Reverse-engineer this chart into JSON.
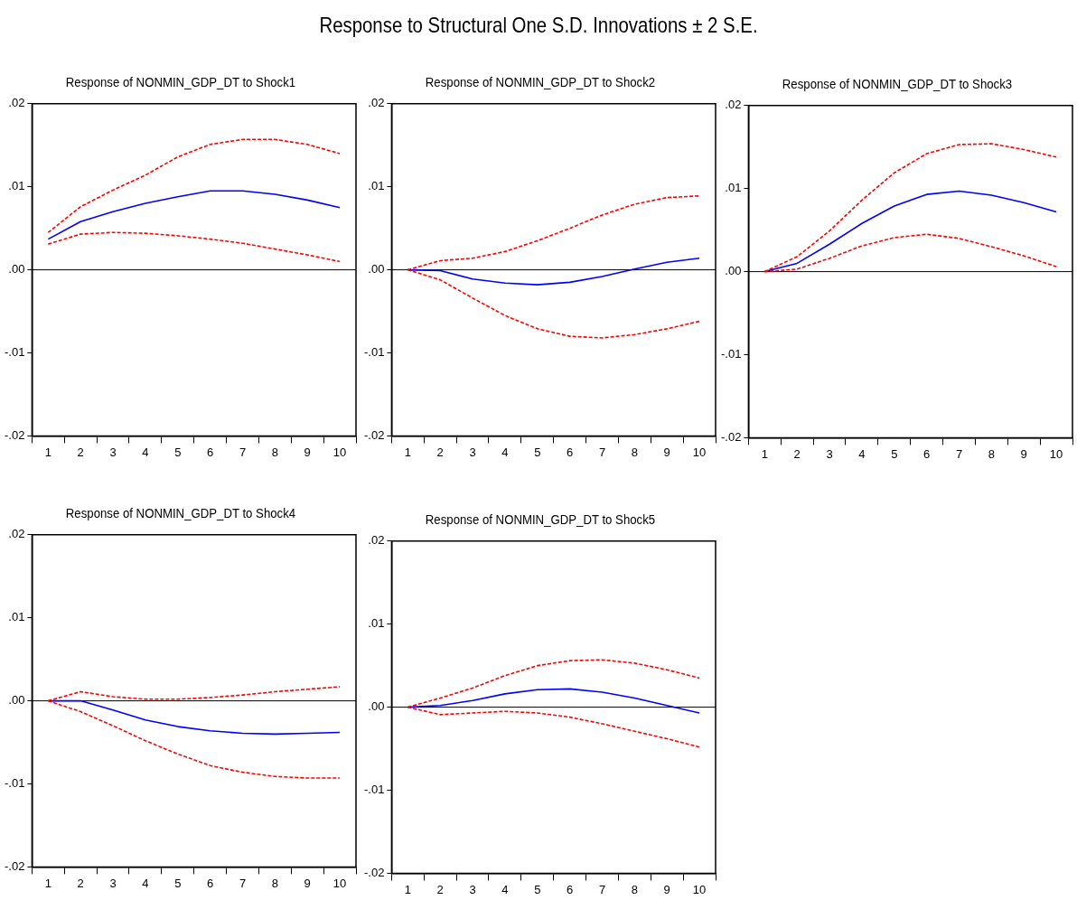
{
  "chart_data": [
    {
      "type": "line",
      "title": "Response of NONMIN_GDP_DT to Shock1",
      "annotations": [
        "Response to Structural One S.D. Innovations ± 2 S.E."
      ],
      "categories": [
        "1",
        "2",
        "3",
        "4",
        "5",
        "6",
        "7",
        "8",
        "9",
        "10"
      ],
      "ylim": [
        -0.02,
        0.02
      ],
      "yticks": [
        {
          "value": -0.02,
          "label": "-.02"
        },
        {
          "value": -0.01,
          "label": "-.01"
        },
        {
          "value": 0,
          "label": ".00"
        },
        {
          "value": 0.01,
          "label": ".01"
        },
        {
          "value": 0.02,
          "label": ".02"
        }
      ],
      "grid": false,
      "legend": false,
      "marker": "none",
      "ref_lines": [
        {
          "axis": "y",
          "value": 0,
          "color": "#000000"
        }
      ],
      "series": [
        {
          "color": "#0000ff",
          "line_style": "solid",
          "values": [
            0.0037,
            0.0058,
            0.007,
            0.008,
            0.0088,
            0.0095,
            0.0095,
            0.0091,
            0.0084,
            0.0075
          ]
        },
        {
          "color": "#ff0000",
          "line_style": "dashed",
          "values": [
            0.0045,
            0.0076,
            0.0096,
            0.0114,
            0.0136,
            0.0151,
            0.0157,
            0.0157,
            0.0151,
            0.014
          ]
        },
        {
          "color": "#ff0000",
          "line_style": "dashed",
          "values": [
            0.0031,
            0.0043,
            0.0045,
            0.0044,
            0.0041,
            0.0037,
            0.0032,
            0.0025,
            0.0018,
            0.001
          ]
        }
      ]
    },
    {
      "type": "line",
      "title": "Response of NONMIN_GDP_DT to Shock2",
      "categories": [
        "1",
        "2",
        "3",
        "4",
        "5",
        "6",
        "7",
        "8",
        "9",
        "10"
      ],
      "ylim": [
        -0.02,
        0.02
      ],
      "yticks": [
        {
          "value": -0.02,
          "label": "-.02"
        },
        {
          "value": -0.01,
          "label": "-.01"
        },
        {
          "value": 0,
          "label": ".00"
        },
        {
          "value": 0.01,
          "label": ".01"
        },
        {
          "value": 0.02,
          "label": ".02"
        }
      ],
      "grid": false,
      "legend": false,
      "marker": "none",
      "ref_lines": [
        {
          "axis": "y",
          "value": 0,
          "color": "#000000"
        }
      ],
      "series": [
        {
          "color": "#0000ff",
          "line_style": "solid",
          "values": [
            0,
            -0.0001,
            -0.0011,
            -0.0016,
            -0.0018,
            -0.0015,
            -0.0008,
            0.0001,
            0.0009,
            0.0014
          ]
        },
        {
          "color": "#ff0000",
          "line_style": "dashed",
          "values": [
            0,
            0.0011,
            0.0014,
            0.0022,
            0.0035,
            0.005,
            0.0066,
            0.0079,
            0.0087,
            0.0089
          ]
        },
        {
          "color": "#ff0000",
          "line_style": "dashed",
          "values": [
            0,
            -0.0012,
            -0.0034,
            -0.0055,
            -0.0071,
            -0.008,
            -0.0082,
            -0.0078,
            -0.0071,
            -0.0062
          ]
        }
      ]
    },
    {
      "type": "line",
      "title": "Response of NONMIN_GDP_DT to Shock3",
      "categories": [
        "1",
        "2",
        "3",
        "4",
        "5",
        "6",
        "7",
        "8",
        "9",
        "10"
      ],
      "ylim": [
        -0.02,
        0.02
      ],
      "yticks": [
        {
          "value": -0.02,
          "label": "-.02"
        },
        {
          "value": -0.01,
          "label": "-.01"
        },
        {
          "value": 0,
          "label": ".00"
        },
        {
          "value": 0.01,
          "label": ".01"
        },
        {
          "value": 0.02,
          "label": ".02"
        }
      ],
      "grid": false,
      "legend": false,
      "marker": "none",
      "ref_lines": [
        {
          "axis": "y",
          "value": 0,
          "color": "#000000"
        }
      ],
      "series": [
        {
          "color": "#0000ff",
          "line_style": "solid",
          "values": [
            0,
            0.001,
            0.0033,
            0.0058,
            0.0079,
            0.0093,
            0.0097,
            0.0092,
            0.0083,
            0.0072
          ]
        },
        {
          "color": "#ff0000",
          "line_style": "dashed",
          "values": [
            0,
            0.0018,
            0.0049,
            0.0086,
            0.0119,
            0.0142,
            0.0153,
            0.0154,
            0.0147,
            0.0138
          ]
        },
        {
          "color": "#ff0000",
          "line_style": "dashed",
          "values": [
            0,
            0.0003,
            0.0016,
            0.0031,
            0.0041,
            0.0045,
            0.004,
            0.003,
            0.0019,
            0.0006
          ]
        }
      ]
    },
    {
      "type": "line",
      "title": "Response of NONMIN_GDP_DT to Shock4",
      "categories": [
        "1",
        "2",
        "3",
        "4",
        "5",
        "6",
        "7",
        "8",
        "9",
        "10"
      ],
      "ylim": [
        -0.02,
        0.02
      ],
      "yticks": [
        {
          "value": -0.02,
          "label": "-.02"
        },
        {
          "value": -0.01,
          "label": "-.01"
        },
        {
          "value": 0,
          "label": ".00"
        },
        {
          "value": 0.01,
          "label": ".01"
        },
        {
          "value": 0.02,
          "label": ".02"
        }
      ],
      "grid": false,
      "legend": false,
      "marker": "none",
      "ref_lines": [
        {
          "axis": "y",
          "value": 0,
          "color": "#000000"
        }
      ],
      "series": [
        {
          "color": "#0000ff",
          "line_style": "solid",
          "values": [
            0,
            0,
            -0.0011,
            -0.0023,
            -0.0031,
            -0.0036,
            -0.0039,
            -0.004,
            -0.0039,
            -0.0038
          ]
        },
        {
          "color": "#ff0000",
          "line_style": "dashed",
          "values": [
            0,
            0.0011,
            0.0005,
            0.0002,
            0.0002,
            0.0004,
            0.0007,
            0.0011,
            0.0014,
            0.0017
          ]
        },
        {
          "color": "#ff0000",
          "line_style": "dashed",
          "values": [
            0,
            -0.0013,
            -0.003,
            -0.0048,
            -0.0064,
            -0.0078,
            -0.0086,
            -0.0091,
            -0.0093,
            -0.0093
          ]
        }
      ]
    },
    {
      "type": "line",
      "title": "Response of NONMIN_GDP_DT to Shock5",
      "categories": [
        "1",
        "2",
        "3",
        "4",
        "5",
        "6",
        "7",
        "8",
        "9",
        "10"
      ],
      "ylim": [
        -0.02,
        0.02
      ],
      "yticks": [
        {
          "value": -0.02,
          "label": "-.02"
        },
        {
          "value": -0.01,
          "label": "-.01"
        },
        {
          "value": 0,
          "label": ".00"
        },
        {
          "value": 0.01,
          "label": ".01"
        },
        {
          "value": 0.02,
          "label": ".02"
        }
      ],
      "grid": false,
      "legend": false,
      "marker": "none",
      "ref_lines": [
        {
          "axis": "y",
          "value": 0,
          "color": "#000000"
        }
      ],
      "series": [
        {
          "color": "#0000ff",
          "line_style": "solid",
          "values": [
            0,
            0.0002,
            0.0008,
            0.0016,
            0.0021,
            0.0022,
            0.0018,
            0.0011,
            0.0002,
            -0.0007
          ]
        },
        {
          "color": "#ff0000",
          "line_style": "dashed",
          "values": [
            0,
            0.0011,
            0.0023,
            0.0038,
            0.005,
            0.0056,
            0.0057,
            0.0053,
            0.0045,
            0.0035
          ]
        },
        {
          "color": "#ff0000",
          "line_style": "dashed",
          "values": [
            0,
            -0.0009,
            -0.0007,
            -0.0005,
            -0.0007,
            -0.0012,
            -0.002,
            -0.0029,
            -0.0038,
            -0.0048
          ]
        }
      ]
    }
  ]
}
